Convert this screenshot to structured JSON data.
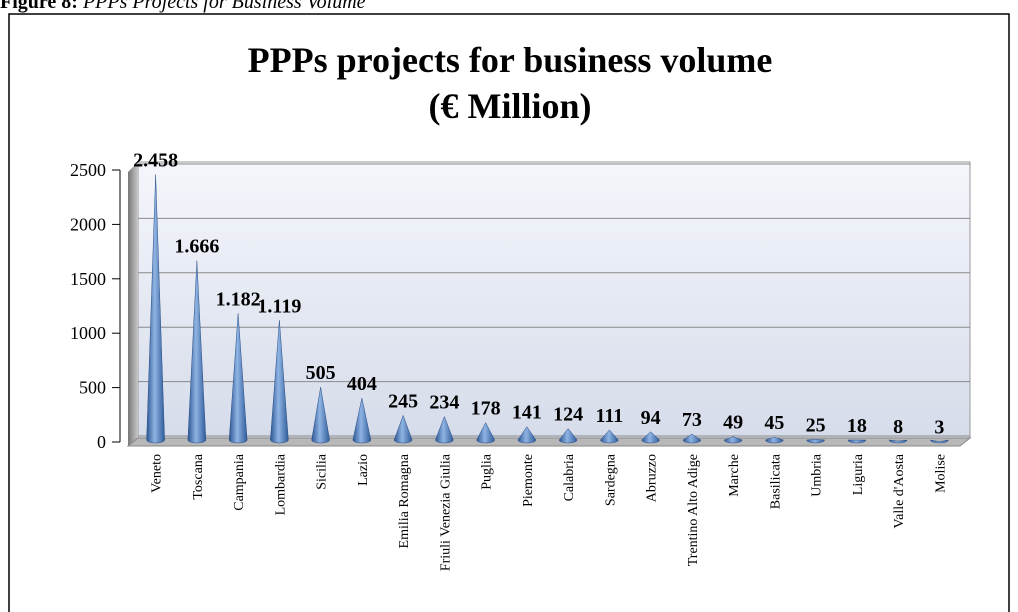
{
  "caption": {
    "label": "Figure 8:",
    "text": "PPPs Projects for Business Volume"
  },
  "chart_data": {
    "type": "cone",
    "title": "PPPs projects for business volume",
    "subtitle": "(€ Million)",
    "categories": [
      "Veneto",
      "Toscana",
      "Campania",
      "Lombardia",
      "Sicilia",
      "Lazio",
      "Emilia Romagna",
      "Friuli Venezia Giulia",
      "Puglia",
      "Piemonte",
      "Calabria",
      "Sardegna",
      "Abruzzo",
      "Trentino Alto Adige",
      "Marche",
      "Basilicata",
      "Umbria",
      "Liguria",
      "Valle d'Aosta",
      "Molise"
    ],
    "values": [
      2458,
      1666,
      1182,
      1119,
      505,
      404,
      245,
      234,
      178,
      141,
      124,
      111,
      94,
      73,
      49,
      45,
      25,
      18,
      8,
      3
    ],
    "value_labels": [
      "2.458",
      "1.666",
      "1.182",
      "1.119",
      "505",
      "404",
      "245",
      "234",
      "178",
      "141",
      "124",
      "111",
      "94",
      "73",
      "49",
      "45",
      "25",
      "18",
      "8",
      "3"
    ],
    "color": "#4f81bd",
    "ylim": [
      0,
      2500
    ],
    "yticks": [
      0,
      500,
      1000,
      1500,
      2000,
      2500
    ],
    "grid": true
  }
}
